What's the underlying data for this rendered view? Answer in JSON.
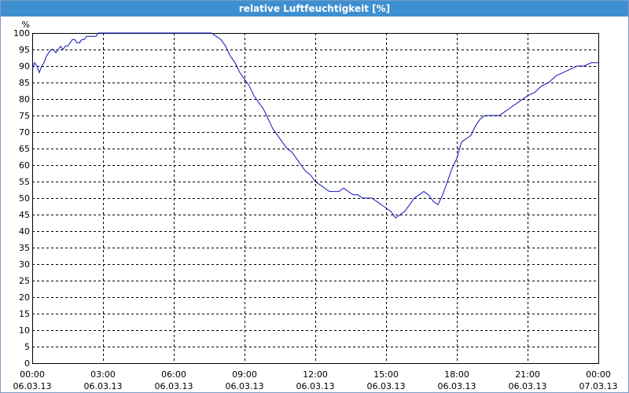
{
  "window": {
    "title": "relative Luftfeuchtigkeit [%]"
  },
  "colors": {
    "title_bar": "#3e8fd0",
    "series_line": "#1010b8",
    "grid": "#000000"
  },
  "chart_data": {
    "type": "line",
    "title": "relative Luftfeuchtigkeit [%]",
    "y_unit_label": "%",
    "ylim": [
      0,
      100
    ],
    "y_ticks": [
      0,
      5,
      10,
      15,
      20,
      25,
      30,
      35,
      40,
      45,
      50,
      55,
      60,
      65,
      70,
      75,
      80,
      85,
      90,
      95,
      100
    ],
    "xlim_hours": [
      0,
      24
    ],
    "x_tick_labels": [
      {
        "time": "00:00",
        "date": "06.03.13"
      },
      {
        "time": "03:00",
        "date": "06.03.13"
      },
      {
        "time": "06:00",
        "date": "06.03.13"
      },
      {
        "time": "09:00",
        "date": "06.03.13"
      },
      {
        "time": "12:00",
        "date": "06.03.13"
      },
      {
        "time": "15:00",
        "date": "06.03.13"
      },
      {
        "time": "18:00",
        "date": "06.03.13"
      },
      {
        "time": "21:00",
        "date": "06.03.13"
      },
      {
        "time": "00:00",
        "date": "07.03.13"
      }
    ],
    "grid": true,
    "series": [
      {
        "x": [
          0.0,
          0.1,
          0.2,
          0.3,
          0.4,
          0.5,
          0.6,
          0.7,
          0.8,
          0.9,
          1.0,
          1.1,
          1.2,
          1.3,
          1.4,
          1.5,
          1.6,
          1.7,
          1.8,
          1.9,
          2.0,
          2.1,
          2.2,
          2.3,
          2.4,
          2.5,
          2.6,
          2.7,
          2.8,
          2.9,
          3.0,
          3.2,
          3.4,
          3.6,
          4.0,
          5.0,
          6.0,
          7.0,
          7.6,
          7.8,
          8.0,
          8.2,
          8.4,
          8.6,
          8.8,
          9.0,
          9.2,
          9.4,
          9.6,
          9.8,
          10.0,
          10.2,
          10.4,
          10.6,
          10.8,
          11.0,
          11.2,
          11.4,
          11.6,
          11.8,
          12.0,
          12.2,
          12.4,
          12.6,
          12.8,
          13.0,
          13.2,
          13.4,
          13.6,
          13.8,
          14.0,
          14.2,
          14.4,
          14.6,
          14.8,
          15.0,
          15.2,
          15.4,
          15.6,
          15.8,
          16.0,
          16.2,
          16.4,
          16.6,
          16.8,
          17.0,
          17.2,
          17.4,
          17.6,
          17.8,
          18.0,
          18.2,
          18.4,
          18.6,
          18.8,
          19.0,
          19.2,
          19.4,
          19.6,
          19.8,
          20.0,
          20.2,
          20.4,
          20.6,
          20.8,
          21.0,
          21.3,
          21.6,
          21.9,
          22.2,
          22.5,
          22.8,
          23.1,
          23.4,
          23.7,
          24.0
        ],
        "y": [
          89,
          91,
          90,
          88,
          90,
          91,
          93,
          94,
          95,
          95,
          94,
          95,
          96,
          95,
          96,
          96,
          97,
          98,
          98,
          97,
          97,
          98,
          98,
          99,
          99,
          99,
          99,
          99,
          100,
          100,
          100,
          100,
          100,
          100,
          100,
          100,
          100,
          100,
          100,
          99,
          98,
          96,
          93,
          91,
          88,
          86,
          84,
          81,
          79,
          77,
          74,
          71,
          69,
          67,
          65,
          64,
          62,
          60,
          58,
          57,
          55,
          54,
          53,
          52,
          52,
          52,
          53,
          52,
          51,
          51,
          50,
          50,
          50,
          49,
          48,
          47,
          46,
          44,
          45,
          46,
          48,
          50,
          51,
          52,
          51,
          49,
          48,
          51,
          55,
          59,
          62,
          67,
          68,
          69,
          72,
          74,
          75,
          75,
          75,
          75,
          76,
          77,
          78,
          79,
          80,
          81,
          82,
          84,
          85,
          87,
          88,
          89,
          90,
          90,
          91,
          91
        ]
      }
    ]
  }
}
